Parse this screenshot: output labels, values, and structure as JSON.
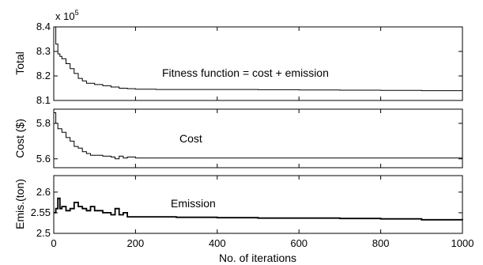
{
  "chart_data": [
    {
      "type": "line",
      "ylabel": "Total",
      "scale_note_base": "x 10",
      "scale_note_exp": "5",
      "annotation": "Fitness function = cost + emission",
      "xlim": [
        0,
        1000
      ],
      "ylim": [
        8.1,
        8.4
      ],
      "yticks": [
        8.1,
        8.2,
        8.3,
        8.4
      ],
      "ytick_labels": [
        "8.1",
        "8.2",
        "8.3",
        "8.4"
      ],
      "x": [
        0,
        5,
        10,
        15,
        20,
        30,
        40,
        50,
        60,
        70,
        80,
        100,
        120,
        140,
        160,
        180,
        200,
        250,
        300,
        400,
        500,
        600,
        700,
        800,
        900,
        1000
      ],
      "y": [
        8.4,
        8.33,
        8.29,
        8.28,
        8.27,
        8.25,
        8.23,
        8.21,
        8.19,
        8.18,
        8.17,
        8.165,
        8.16,
        8.155,
        8.15,
        8.148,
        8.146,
        8.145,
        8.145,
        8.145,
        8.144,
        8.143,
        8.142,
        8.141,
        8.14,
        8.14
      ]
    },
    {
      "type": "line",
      "ylabel": "Cost ($)",
      "annotation": "Cost",
      "xlim": [
        0,
        1000
      ],
      "ylim": [
        5.55,
        5.88
      ],
      "yticks": [
        5.6,
        5.8
      ],
      "ytick_labels": [
        "5.6",
        "5.8"
      ],
      "x": [
        0,
        5,
        10,
        20,
        30,
        40,
        50,
        60,
        70,
        80,
        90,
        100,
        120,
        140,
        150,
        160,
        170,
        180,
        200,
        300,
        400,
        500,
        600,
        700,
        800,
        900,
        1000
      ],
      "y": [
        5.86,
        5.8,
        5.77,
        5.75,
        5.72,
        5.7,
        5.67,
        5.66,
        5.64,
        5.63,
        5.62,
        5.62,
        5.615,
        5.61,
        5.6,
        5.615,
        5.605,
        5.61,
        5.605,
        5.605,
        5.605,
        5.605,
        5.605,
        5.605,
        5.605,
        5.605,
        5.605
      ]
    },
    {
      "type": "line",
      "ylabel": "Emis.(ton)",
      "annotation": "Emission",
      "xlim": [
        0,
        1000
      ],
      "ylim": [
        2.5,
        2.64
      ],
      "yticks": [
        2.5,
        2.55,
        2.6
      ],
      "ytick_labels": [
        "2.5",
        "2.55",
        "2.6"
      ],
      "xticks": [
        0,
        200,
        400,
        600,
        800,
        1000
      ],
      "xtick_labels": [
        "0",
        "200",
        "400",
        "600",
        "800",
        "1000"
      ],
      "xlabel": "No. of iterations",
      "x": [
        0,
        5,
        10,
        15,
        20,
        30,
        40,
        50,
        60,
        70,
        80,
        90,
        100,
        120,
        140,
        150,
        160,
        170,
        180,
        200,
        300,
        400,
        500,
        600,
        700,
        800,
        900,
        1000
      ],
      "y": [
        2.55,
        2.56,
        2.585,
        2.56,
        2.565,
        2.555,
        2.56,
        2.575,
        2.565,
        2.56,
        2.555,
        2.565,
        2.555,
        2.55,
        2.545,
        2.56,
        2.545,
        2.55,
        2.54,
        2.54,
        2.539,
        2.538,
        2.537,
        2.537,
        2.536,
        2.535,
        2.533,
        2.532
      ]
    }
  ]
}
